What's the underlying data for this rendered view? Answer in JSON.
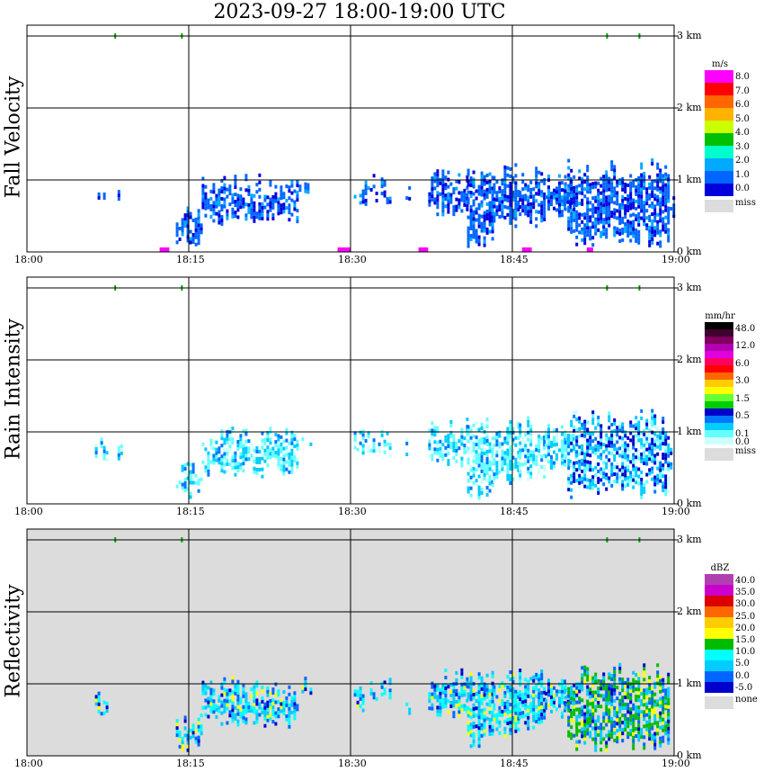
{
  "title": "2023-09-27   18:00-19:00 UTC",
  "chart_data": [
    {
      "type": "heatmap",
      "ylabel": "Fall Velocity",
      "x_ticks": [
        "18:00",
        "18:15",
        "18:30",
        "18:45",
        "19:00"
      ],
      "y_ticks": [
        "0 km",
        "1 km",
        "2 km",
        "3 km"
      ],
      "xlim": [
        "18:00",
        "19:00"
      ],
      "ylim_km": [
        0,
        3.1
      ],
      "grid": true,
      "colorbar": {
        "unit": "m/s",
        "labels": [
          "8.0",
          "7.0",
          "6.0",
          "5.0",
          "4.0",
          "3.0",
          "2.0",
          "1.0",
          "0.0"
        ],
        "colors": [
          "#ff00ff",
          "#ff0000",
          "#ff6600",
          "#ffb300",
          "#ccff00",
          "#00c000",
          "#00ffcc",
          "#00aaff",
          "#0066ff",
          "#0000dd"
        ],
        "missing_label": "miss",
        "missing_color": "#dcdcdc"
      },
      "background": "#ffffff"
    },
    {
      "type": "heatmap",
      "ylabel": "Rain Intensity",
      "x_ticks": [
        "18:00",
        "18:15",
        "18:30",
        "18:45",
        "19:00"
      ],
      "y_ticks": [
        "0 km",
        "1 km",
        "2 km",
        "3 km"
      ],
      "xlim": [
        "18:00",
        "19:00"
      ],
      "ylim_km": [
        0,
        3.1
      ],
      "grid": true,
      "colorbar": {
        "unit": "mm/hr",
        "labels": [
          "48.0",
          "",
          "12.0",
          "",
          "6.0",
          "",
          "3.0",
          "",
          "1.5",
          "",
          "0.5",
          "",
          "0.1",
          "0.0"
        ],
        "colors": [
          "#000000",
          "#400030",
          "#800060",
          "#b000b0",
          "#e000e0",
          "#ff0060",
          "#ff0000",
          "#ff6600",
          "#ffcc00",
          "#ffff00",
          "#66ff33",
          "#00cc00",
          "#0000cc",
          "#0077ff",
          "#00ccff",
          "#66ffff",
          "#ccffff"
        ],
        "missing_label": "miss",
        "missing_color": "#dcdcdc"
      },
      "background": "#ffffff"
    },
    {
      "type": "heatmap",
      "ylabel": "Reflectivity",
      "x_ticks": [
        "18:00",
        "18:15",
        "18:30",
        "18:45",
        "19:00"
      ],
      "y_ticks": [
        "0 km",
        "1 km",
        "2 km",
        "3 km"
      ],
      "xlim": [
        "18:00",
        "19:00"
      ],
      "ylim_km": [
        0,
        3.1
      ],
      "grid": true,
      "colorbar": {
        "unit": "dBZ",
        "labels": [
          "40.0",
          "35.0",
          "30.0",
          "25.0",
          "20.0",
          "15.0",
          "10.0",
          "5.0",
          "0.0",
          "-5.0"
        ],
        "colors": [
          "#b040b0",
          "#cc00cc",
          "#dd0000",
          "#ff6600",
          "#ffcc00",
          "#ffff00",
          "#00bb00",
          "#00ffff",
          "#00ccff",
          "#0066ff",
          "#0000cc"
        ],
        "missing_label": "none",
        "missing_color": "#dcdcdc"
      },
      "background": "#dcdcdc"
    }
  ]
}
